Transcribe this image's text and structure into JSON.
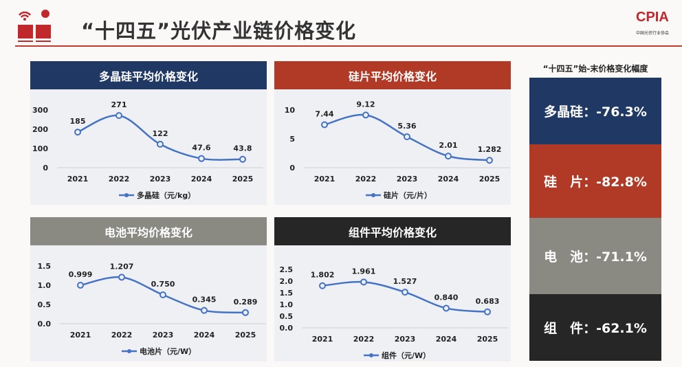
{
  "header": {
    "title": "“十四五”光伏产业链价格变化",
    "logo_text": "CPIA",
    "logo_subtitle": "中国光伏行业协会"
  },
  "summary": {
    "title": "“十四五”始-末价格变化幅度",
    "items": [
      {
        "label": "多晶硅：-76.3%",
        "color": "#1f3864"
      },
      {
        "label": "硅　片：-82.8%",
        "color": "#b03a25"
      },
      {
        "label": "电　池：-71.1%",
        "color": "#8a8a82"
      },
      {
        "label": "组　件：-62.1%",
        "color": "#262626"
      }
    ]
  },
  "chart_data": [
    {
      "type": "line",
      "title": "多晶硅平均价格变化",
      "header_color": "#1f3864",
      "categories": [
        "2021",
        "2022",
        "2023",
        "2024",
        "2025"
      ],
      "series": [
        {
          "name": "多晶硅（元/kg）",
          "values": [
            185,
            271,
            122,
            47.6,
            43.8
          ],
          "labels": [
            "185",
            "271",
            "122",
            "47.6",
            "43.8"
          ]
        }
      ],
      "yticks": [
        "0",
        "100",
        "200",
        "300"
      ],
      "ylim": [
        0,
        300
      ],
      "line_color": "#4472c4"
    },
    {
      "type": "line",
      "title": "硅片平均价格变化",
      "header_color": "#b03a25",
      "categories": [
        "2021",
        "2022",
        "2023",
        "2024",
        "2025"
      ],
      "series": [
        {
          "name": "硅片（元/片）",
          "values": [
            7.44,
            9.12,
            5.36,
            2.01,
            1.282
          ],
          "labels": [
            "7.44",
            "9.12",
            "5.36",
            "2.01",
            "1.282"
          ]
        }
      ],
      "yticks": [
        "0",
        "5",
        "10"
      ],
      "ylim": [
        0,
        10
      ],
      "line_color": "#4472c4"
    },
    {
      "type": "line",
      "title": "电池平均价格变化",
      "header_color": "#8a8a82",
      "categories": [
        "2021",
        "2022",
        "2023",
        "2024",
        "2025"
      ],
      "series": [
        {
          "name": "电池片（元/W）",
          "values": [
            0.999,
            1.207,
            0.75,
            0.345,
            0.289
          ],
          "labels": [
            "0.999",
            "1.207",
            "0.750",
            "0.345",
            "0.289"
          ]
        }
      ],
      "yticks": [
        "0.0",
        "0.5",
        "1.0",
        "1.5"
      ],
      "ylim": [
        0,
        1.5
      ],
      "line_color": "#4472c4"
    },
    {
      "type": "line",
      "title": "组件平均价格变化",
      "header_color": "#262626",
      "categories": [
        "2021",
        "2022",
        "2023",
        "2024",
        "2025"
      ],
      "series": [
        {
          "name": "组件（元/W）",
          "values": [
            1.802,
            1.961,
            1.527,
            0.84,
            0.683
          ],
          "labels": [
            "1.802",
            "1.961",
            "1.527",
            "0.840",
            "0.683"
          ]
        }
      ],
      "yticks": [
        "0.0",
        "0.5",
        "1.0",
        "1.5",
        "2.0",
        "2.5"
      ],
      "ylim": [
        0,
        2.5
      ],
      "line_color": "#4472c4"
    }
  ]
}
